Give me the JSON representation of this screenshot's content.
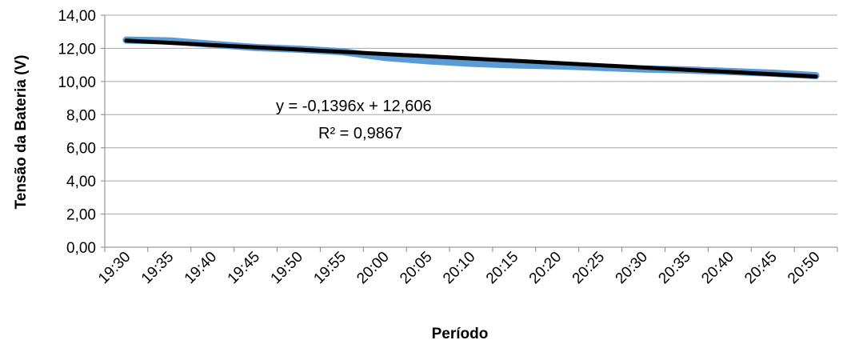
{
  "chart_data": {
    "type": "line",
    "title": "",
    "xlabel": "Período",
    "ylabel": "Tensão da Bateria (V)",
    "ylim": [
      0,
      14
    ],
    "yticks": [
      "0,00",
      "2,00",
      "4,00",
      "6,00",
      "8,00",
      "10,00",
      "12,00",
      "14,00"
    ],
    "categories": [
      "19:30",
      "19:35",
      "19:40",
      "19:45",
      "19:50",
      "19:55",
      "20:00",
      "20:05",
      "20:10",
      "20:15",
      "20:20",
      "20:25",
      "20:30",
      "20:35",
      "20:40",
      "20:45",
      "20:50"
    ],
    "grid": true,
    "legend": "none",
    "series": [
      {
        "kind": "data",
        "color": "#5b9bd5",
        "points": [
          [
            "19:30",
            12.5
          ],
          [
            "19:35",
            12.45
          ],
          [
            "19:40",
            12.25
          ],
          [
            "19:45",
            12.05
          ],
          [
            "19:50",
            11.95
          ],
          [
            "19:55",
            11.8
          ],
          [
            "20:00",
            11.45
          ],
          [
            "20:05",
            11.25
          ],
          [
            "20:10",
            11.1
          ],
          [
            "20:15",
            11.0
          ],
          [
            "20:20",
            10.95
          ],
          [
            "20:25",
            10.85
          ],
          [
            "20:30",
            10.75
          ],
          [
            "20:35",
            10.7
          ],
          [
            "20:40",
            10.6
          ],
          [
            "20:45",
            10.5
          ],
          [
            "20:50",
            10.35
          ]
        ]
      },
      {
        "kind": "trendline",
        "color": "#000000",
        "points": [
          [
            "19:30",
            12.47
          ],
          [
            "20:50",
            10.3
          ]
        ]
      }
    ],
    "annotations": {
      "equation": "y = -0,1396x + 12,606",
      "r2": "R² = 0,9867"
    },
    "colors": {
      "gridline": "#a6a6a6",
      "axis": "#868686",
      "data_line": "#5b9bd5",
      "trend_line": "#000000"
    }
  }
}
